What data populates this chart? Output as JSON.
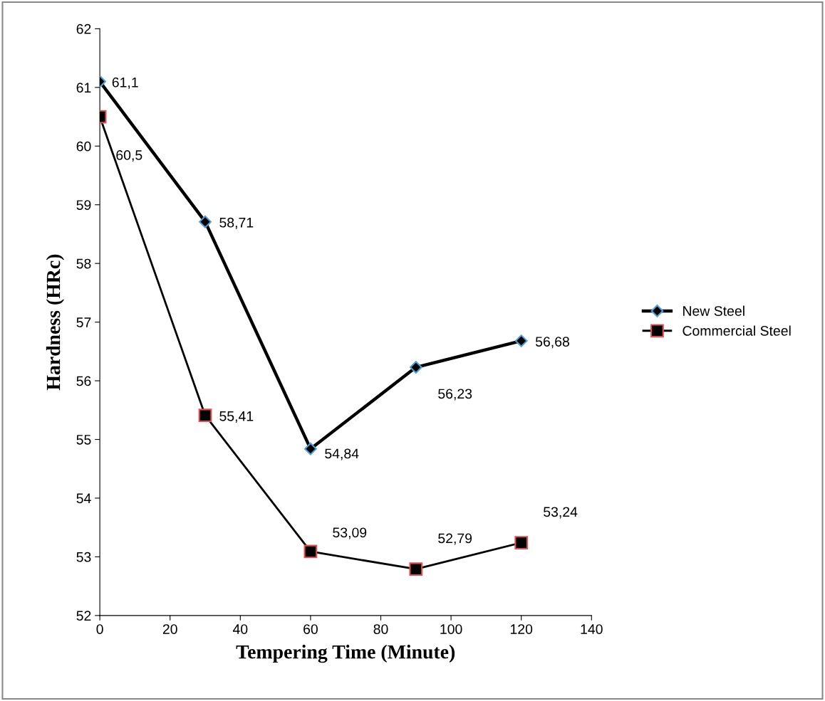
{
  "chart_data": {
    "type": "line",
    "xlabel": "Tempering Time (Minute)",
    "ylabel": "Hardness (HRc)",
    "x": [
      0,
      30,
      60,
      90,
      120
    ],
    "series": [
      {
        "name": "New Steel",
        "color": "#000000",
        "marker": "diamond",
        "values": [
          61.1,
          58.71,
          54.84,
          56.23,
          56.68
        ],
        "value_labels": [
          "61,1",
          "58,71",
          "54,84",
          "56,23",
          "56,68"
        ]
      },
      {
        "name": "Commercial Steel",
        "color": "#000000",
        "marker": "square",
        "values": [
          60.5,
          55.41,
          53.09,
          52.79,
          53.24
        ],
        "value_labels": [
          "60,5",
          "55,41",
          "53,09",
          "52,79",
          "53,24"
        ]
      }
    ],
    "xlim": [
      0,
      140
    ],
    "xticks": [
      0,
      20,
      40,
      60,
      80,
      100,
      120,
      140
    ],
    "ylim": [
      52,
      62
    ],
    "yticks": [
      52,
      53,
      54,
      55,
      56,
      57,
      58,
      59,
      60,
      61,
      62
    ],
    "grid": false,
    "legend": "right",
    "line_style": "solid"
  }
}
